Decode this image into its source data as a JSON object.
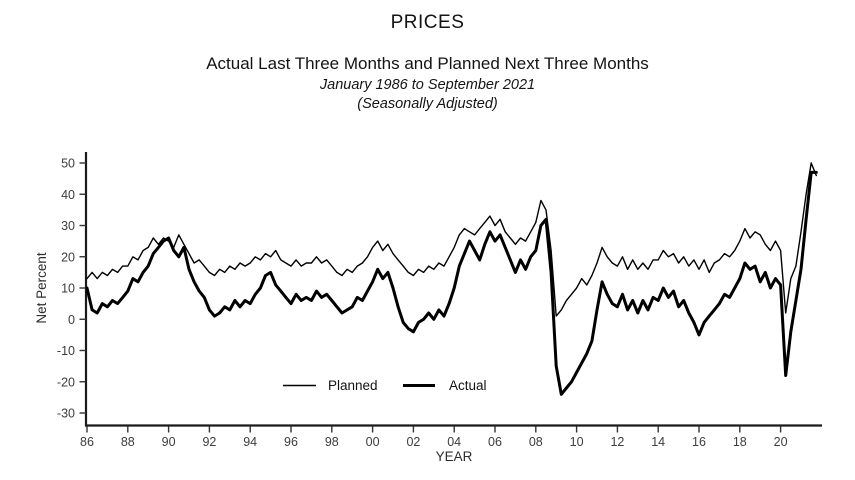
{
  "header": {
    "title": "PRICES",
    "subtitle": "Actual Last Three Months and Planned Next Three Months",
    "date_range": "January 1986 to September 2021",
    "adjustment_note": "(Seasonally Adjusted)"
  },
  "chart_data": {
    "type": "line",
    "title": "PRICES",
    "subtitle": "Actual Last Three Months and Planned Next Three Months",
    "period": "January 1986 to September 2021",
    "note": "(Seasonally Adjusted)",
    "xlabel": "YEAR",
    "ylabel": "Net Percent",
    "ylim": [
      -30,
      50
    ],
    "y_ticks": [
      50,
      40,
      30,
      20,
      10,
      0,
      -10,
      -20,
      -30
    ],
    "x_tick_years": [
      1986,
      1988,
      1990,
      1992,
      1994,
      1996,
      1998,
      2000,
      2002,
      2004,
      2006,
      2008,
      2010,
      2012,
      2014,
      2016,
      2018,
      2020
    ],
    "x_tick_labels": [
      "86",
      "88",
      "90",
      "92",
      "94",
      "96",
      "98",
      "00",
      "02",
      "04",
      "06",
      "08",
      "10",
      "12",
      "14",
      "16",
      "18",
      "20"
    ],
    "grid": false,
    "legend_position": "inside bottom-center",
    "color": "#000000",
    "sampling": {
      "x_start": 1986.0,
      "x_step_years": 0.25,
      "points": 144
    },
    "series": [
      {
        "name": "Planned",
        "line_weight": "thin",
        "stroke_width": 1.4,
        "values": [
          13,
          15,
          13,
          15,
          14,
          16,
          15,
          17,
          17,
          20,
          19,
          22,
          23,
          26,
          24,
          26,
          25,
          23,
          27,
          24,
          21,
          18,
          19,
          17,
          15,
          14,
          16,
          15,
          17,
          16,
          18,
          17,
          18,
          20,
          19,
          21,
          20,
          22,
          19,
          18,
          17,
          19,
          17,
          18,
          18,
          20,
          18,
          19,
          17,
          15,
          14,
          16,
          15,
          17,
          18,
          20,
          23,
          25,
          22,
          24,
          21,
          19,
          17,
          15,
          14,
          16,
          15,
          17,
          16,
          18,
          17,
          20,
          23,
          27,
          29,
          28,
          27,
          29,
          31,
          33,
          30,
          32,
          28,
          26,
          24,
          26,
          25,
          28,
          31,
          38,
          35,
          22,
          1,
          3,
          6,
          8,
          10,
          13,
          11,
          14,
          18,
          23,
          20,
          18,
          17,
          20,
          16,
          19,
          16,
          18,
          16,
          19,
          19,
          22,
          20,
          21,
          18,
          20,
          17,
          19,
          16,
          19,
          15,
          18,
          19,
          21,
          20,
          22,
          25,
          29,
          26,
          28,
          27,
          24,
          22,
          25,
          22,
          2,
          13,
          17,
          28,
          40,
          50,
          46
        ]
      },
      {
        "name": "Actual",
        "line_weight": "thick",
        "stroke_width": 3,
        "values": [
          10,
          3,
          2,
          5,
          4,
          6,
          5,
          7,
          9,
          13,
          12,
          15,
          17,
          21,
          23,
          25,
          26,
          22,
          20,
          23,
          16,
          12,
          9,
          7,
          3,
          1,
          2,
          4,
          3,
          6,
          4,
          6,
          5,
          8,
          10,
          14,
          15,
          11,
          9,
          7,
          5,
          8,
          6,
          7,
          6,
          9,
          7,
          8,
          6,
          4,
          2,
          3,
          4,
          7,
          6,
          9,
          12,
          16,
          13,
          15,
          10,
          4,
          -1,
          -3,
          -4,
          -1,
          0,
          2,
          0,
          3,
          1,
          5,
          10,
          17,
          21,
          25,
          22,
          19,
          24,
          28,
          25,
          27,
          23,
          19,
          15,
          19,
          16,
          20,
          22,
          30,
          32,
          15,
          -15,
          -24,
          -22,
          -20,
          -17,
          -14,
          -11,
          -7,
          3,
          12,
          8,
          5,
          4,
          8,
          3,
          6,
          2,
          6,
          3,
          7,
          6,
          10,
          7,
          9,
          4,
          6,
          2,
          -1,
          -5,
          -1,
          1,
          3,
          5,
          8,
          7,
          10,
          13,
          18,
          16,
          17,
          12,
          15,
          10,
          13,
          11,
          -18,
          -4,
          6,
          16,
          32,
          47,
          47
        ]
      }
    ]
  }
}
